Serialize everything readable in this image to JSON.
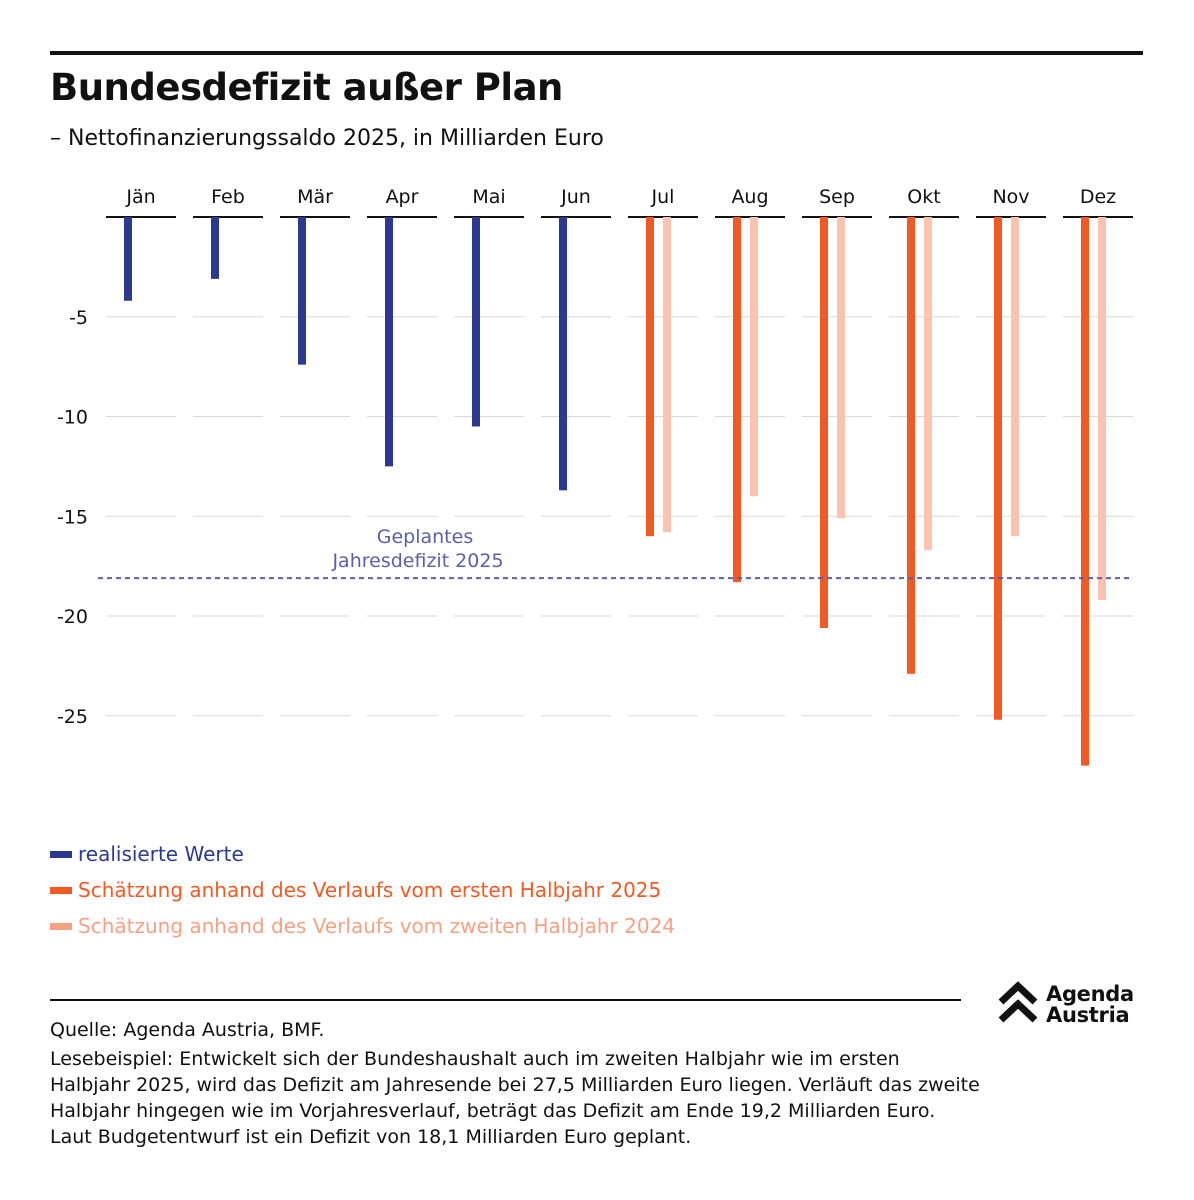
{
  "header": {
    "title": "Bundesdefizit außer Plan",
    "subtitle": "– Nettofinanzierungssaldo 2025, in Milliarden Euro"
  },
  "chart_data": {
    "type": "bar",
    "categories": [
      "Jän",
      "Feb",
      "Mär",
      "Apr",
      "Mai",
      "Jun",
      "Jul",
      "Aug",
      "Sep",
      "Okt",
      "Nov",
      "Dez"
    ],
    "series": [
      {
        "name": "realisierte Werte",
        "color": "#2b3990",
        "values": [
          -4.2,
          -3.1,
          -7.4,
          -12.5,
          -10.5,
          -13.7,
          null,
          null,
          null,
          null,
          null,
          null
        ]
      },
      {
        "name": "Schätzung anhand des Verlaufs vom ersten Halbjahr 2025",
        "color": "#f15a22",
        "values": [
          null,
          null,
          null,
          null,
          null,
          null,
          -16.0,
          -18.3,
          -20.6,
          -22.9,
          -25.2,
          -27.5
        ]
      },
      {
        "name": "Schätzung anhand des Verlaufs vom zweiten Halbjahr 2024",
        "color": "#f9c3b0",
        "values": [
          null,
          null,
          null,
          null,
          null,
          null,
          -15.8,
          -14.0,
          -15.1,
          -16.7,
          -16.0,
          -19.2
        ]
      }
    ],
    "yticks": [
      -5,
      -10,
      -15,
      -20,
      -25
    ],
    "ylim": [
      -28,
      0
    ],
    "grid": true,
    "reference_line": {
      "value": -18.1,
      "label_line1": "Geplantes",
      "label_line2": "Jahresdefizit 2025",
      "color": "#5c5fa8"
    },
    "legend_position": "bottom-left"
  },
  "legend": {
    "realized": "realisierte Werte",
    "first_half": "Schätzung anhand des Verlaufs vom ersten Halbjahr 2025",
    "second_half": "Schätzung anhand des Verlaufs vom zweiten Halbjahr 2024"
  },
  "footer": {
    "source": "Quelle: Agenda Austria, BMF.",
    "reading_example": "Lesebeispiel: Entwickelt sich der Bundeshaushalt auch im zweiten Halbjahr wie im ersten Halbjahr 2025, wird das Defizit am Jahresende bei 27,5 Milliarden Euro liegen. Verläuft das zweite Halbjahr hingegen wie im Vorjahresverlauf, beträgt das Defizit am Ende 19,2 Milliarden Euro. Laut Budgetentwurf ist ein Defizit von 18,1 Milliarden Euro geplant."
  },
  "logo": {
    "line1": "Agenda",
    "line2": "Austria",
    "icon": "double-chevron-up-icon"
  }
}
